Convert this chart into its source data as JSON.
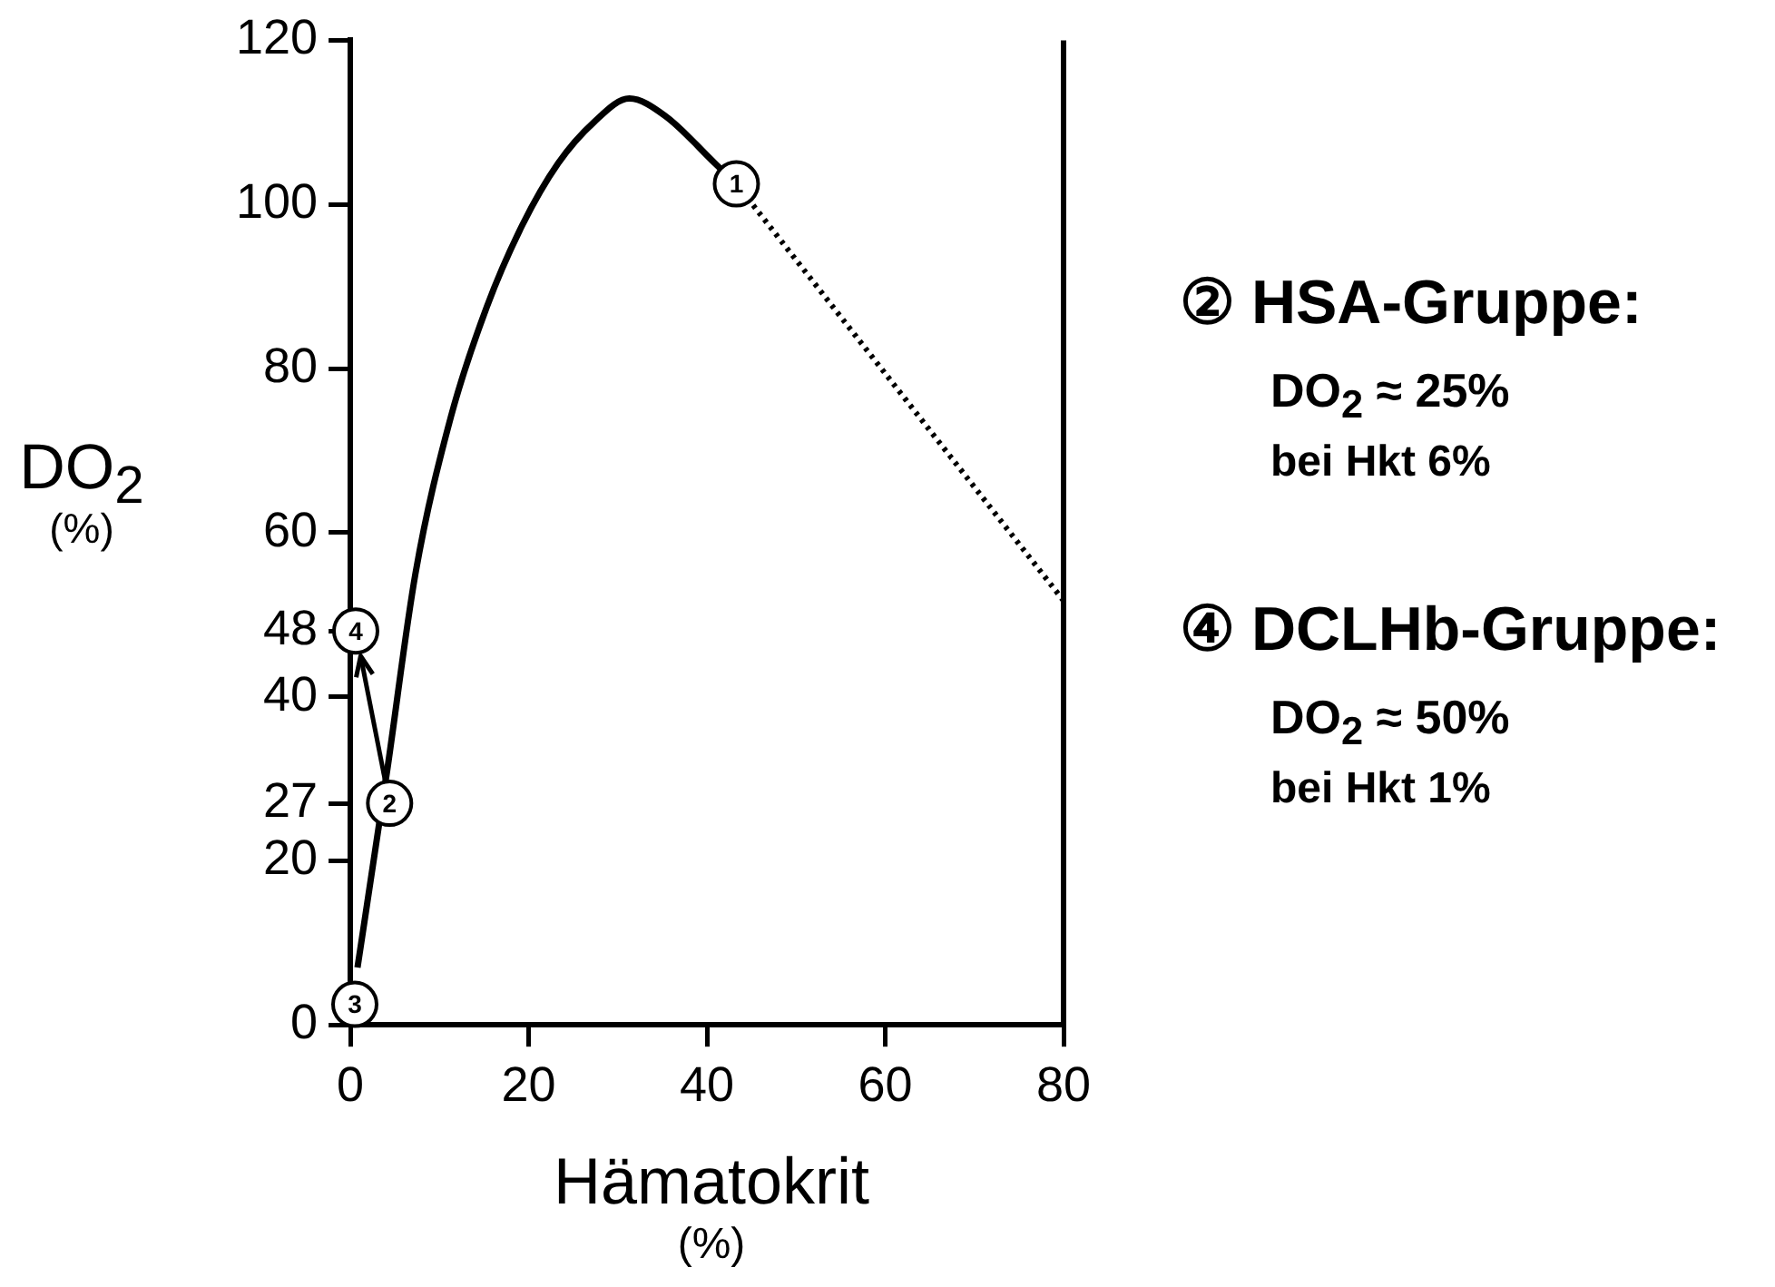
{
  "chart_data": {
    "type": "line",
    "xlabel": "Hämatokrit\n(%)",
    "ylabel": "DO$_{2}$\n(%)",
    "xlim": [
      0,
      80
    ],
    "xticks": [
      0,
      20,
      40,
      60,
      80
    ],
    "ylim": [
      0,
      120
    ],
    "yticks": [
      0,
      20,
      27,
      40,
      48,
      60,
      80,
      100,
      120
    ],
    "grid": false,
    "legend": false,
    "marker": "none",
    "series": [
      {
        "color": "#000000",
        "line_style": "solid",
        "x": [
          0.8,
          4.1,
          7.3,
          11.3,
          15.3,
          19.3,
          23.3,
          27.3,
          31.3,
          35.3,
          40.9,
          43.3
        ],
        "values": [
          7,
          30.8,
          55,
          74.2,
          87.5,
          97.5,
          105,
          110,
          112.9,
          110.8,
          105,
          102.5
        ]
      },
      {
        "color": "#000000",
        "line_style": "dotted",
        "x": [
          43.3,
          80
        ],
        "values": [
          102.5,
          51.7
        ]
      }
    ],
    "annotations": [
      {
        "text": "1",
        "x": 43.3,
        "y": 102.5
      },
      {
        "text": "2",
        "x": 4.4,
        "y": 27
      },
      {
        "text": "3",
        "x": 0.5,
        "y": 2.5
      },
      {
        "text": "4",
        "x": 0.6,
        "y": 48
      },
      "② HSA-Gruppe:",
      "DO$_{2}$ ≈ 25%",
      "bei Hkt 6%",
      "④ DCLHb-Gruppe:",
      "DO$_{2}$ ≈ 50%",
      "bei Hkt 1%"
    ]
  }
}
